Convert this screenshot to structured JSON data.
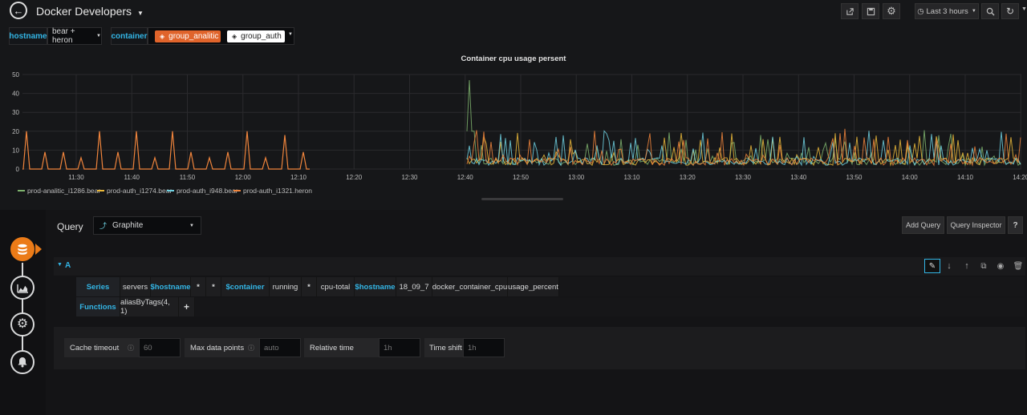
{
  "header": {
    "title": "Docker Developers",
    "time_range": "Last 3 hours"
  },
  "variables": {
    "hostname": {
      "label": "hostname",
      "value": "bear + heron"
    },
    "container": {
      "label": "container",
      "tags": [
        "group_analitic",
        "group_auth"
      ]
    }
  },
  "chart_data": {
    "type": "line",
    "title": "Container cpu usage persent",
    "y_ticks": [
      "50",
      "40",
      "30",
      "20",
      "10",
      "0"
    ],
    "ylim": [
      0,
      50
    ],
    "x_ticks": [
      "11:30",
      "11:40",
      "11:50",
      "12:00",
      "12:10",
      "12:20",
      "12:30",
      "12:40",
      "12:50",
      "13:00",
      "13:10",
      "13:20",
      "13:30",
      "13:40",
      "13:50",
      "14:00",
      "14:10",
      "14:20"
    ],
    "grid": true,
    "legend_position": "bottom-left",
    "series": [
      {
        "name": "prod-analitic_i1286.bear",
        "color": "#7eb26d"
      },
      {
        "name": "prod-auth_i1274.bear",
        "color": "#eab839"
      },
      {
        "name": "prod-auth_i948.bear",
        "color": "#6ed0e0"
      },
      {
        "name": "prod-auth_i1321.heron",
        "color": "#ef843c"
      }
    ]
  },
  "query": {
    "label": "Query",
    "datasource": "Graphite",
    "add_query": "Add Query",
    "inspector": "Query Inspector",
    "help": "?",
    "ref_id": "A",
    "series_label": "Series",
    "series_segments": [
      "servers",
      "$hostname",
      "*",
      "*",
      "$container",
      "running",
      "*",
      "cpu-total",
      "$hostname",
      "18_09_7",
      "docker_container_cpu",
      "usage_percent"
    ],
    "functions_label": "Functions",
    "function": "aliasByTags(4, 1)",
    "add_function": "+"
  },
  "options": {
    "cache_timeout": {
      "label": "Cache timeout",
      "placeholder": "60"
    },
    "max_data_points": {
      "label": "Max data points",
      "placeholder": "auto"
    },
    "relative_time": {
      "label": "Relative time",
      "placeholder": "1h"
    },
    "time_shift": {
      "label": "Time shift",
      "placeholder": "1h"
    }
  }
}
